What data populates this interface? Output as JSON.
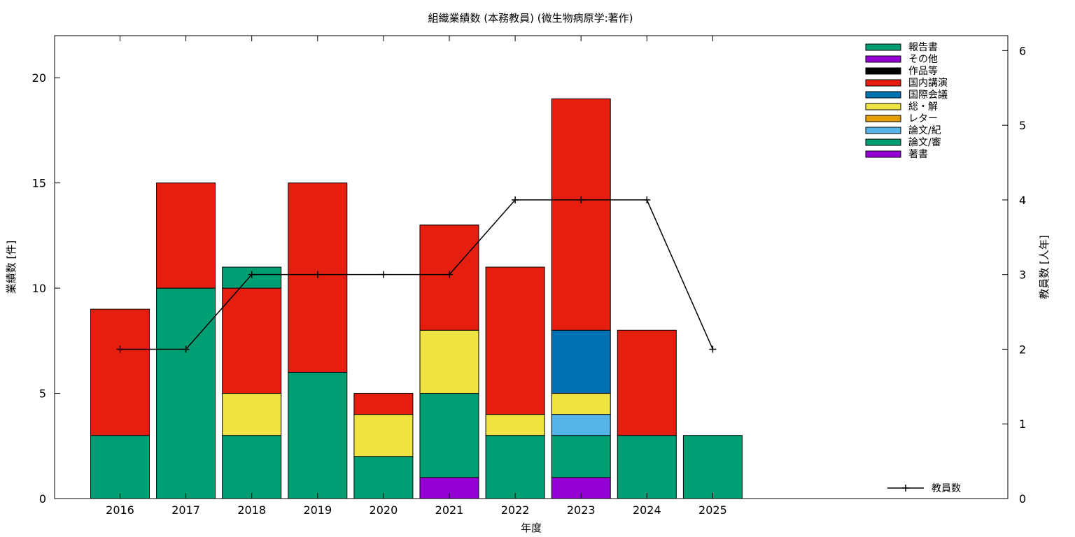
{
  "chart_data": {
    "type": "bar",
    "stacked": true,
    "title": "組織業績数 (本務教員) (微生物病原学:著作)",
    "xlabel": "年度",
    "ylabel": "業績数 [件]",
    "y2label": "教員数 [人年]",
    "categories": [
      "2016",
      "2017",
      "2018",
      "2019",
      "2020",
      "2021",
      "2022",
      "2023",
      "2024",
      "2025"
    ],
    "ylim": [
      0,
      22
    ],
    "yticks": [
      0,
      5,
      10,
      15,
      20
    ],
    "y2lim": [
      0,
      6.2
    ],
    "y2ticks": [
      0,
      1,
      2,
      3,
      4,
      5,
      6
    ],
    "grid": false,
    "legend_position": "top-right",
    "series": [
      {
        "name": "著書",
        "color": "#9400d3",
        "values": [
          0,
          0,
          0,
          0,
          0,
          1,
          0,
          1,
          0,
          0
        ]
      },
      {
        "name": "論文/審",
        "color": "#009e73",
        "values": [
          3,
          10,
          3,
          6,
          2,
          4,
          3,
          2,
          3,
          3
        ]
      },
      {
        "name": "論文/紀",
        "color": "#56b4e9",
        "values": [
          0,
          0,
          0,
          0,
          0,
          0,
          0,
          1,
          0,
          0
        ]
      },
      {
        "name": "レター",
        "color": "#e69f00",
        "values": [
          0,
          0,
          0,
          0,
          0,
          0,
          0,
          0,
          0,
          0
        ]
      },
      {
        "name": "総・解",
        "color": "#f0e442",
        "values": [
          0,
          0,
          2,
          0,
          2,
          3,
          1,
          1,
          0,
          0
        ]
      },
      {
        "name": "国際会議",
        "color": "#0072b2",
        "values": [
          0,
          0,
          0,
          0,
          0,
          0,
          0,
          3,
          0,
          0
        ]
      },
      {
        "name": "国内講演",
        "color": "#e51e10",
        "values": [
          6,
          5,
          5,
          9,
          1,
          5,
          7,
          11,
          5,
          0
        ]
      },
      {
        "name": "作品等",
        "color": "#000000",
        "values": [
          0,
          0,
          0,
          0,
          0,
          0,
          0,
          0,
          0,
          0
        ]
      },
      {
        "name": "その他",
        "color": "#9400d3",
        "values": [
          0,
          0,
          0,
          0,
          0,
          0,
          0,
          0,
          0,
          0
        ]
      },
      {
        "name": "報告書",
        "color": "#009e73",
        "values": [
          0,
          0,
          1,
          0,
          0,
          0,
          0,
          0,
          0,
          0
        ]
      }
    ],
    "line_series": {
      "name": "教員数",
      "color": "#000000",
      "axis": "y2",
      "values": [
        2,
        2,
        3,
        3,
        3,
        3,
        4,
        4,
        4,
        2
      ]
    }
  }
}
